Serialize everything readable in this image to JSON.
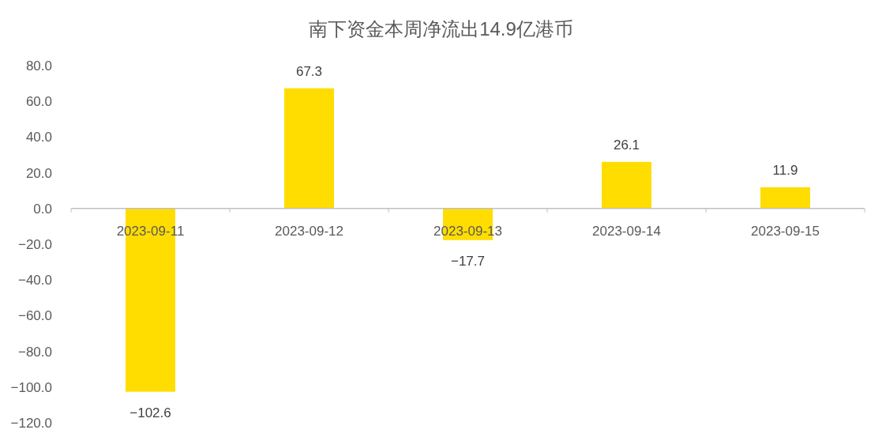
{
  "chart_data": {
    "type": "bar",
    "title": "南下资金本周净流出14.9亿港币",
    "categories": [
      "2023-09-11",
      "2023-09-12",
      "2023-09-13",
      "2023-09-14",
      "2023-09-15"
    ],
    "values": [
      -102.6,
      67.3,
      -17.7,
      26.1,
      11.9
    ],
    "value_labels": [
      "−102.6",
      "67.3",
      "−17.7",
      "26.1",
      "11.9"
    ],
    "color": "#ffdd00",
    "ylim": [
      -120,
      80
    ],
    "yticks": [
      {
        "value": -120,
        "label": "−120.0"
      },
      {
        "value": -100,
        "label": "−100.0"
      },
      {
        "value": -80,
        "label": "−80.0"
      },
      {
        "value": -60,
        "label": "−60.0"
      },
      {
        "value": -40,
        "label": "−40.0"
      },
      {
        "value": -20,
        "label": "−20.0"
      },
      {
        "value": 0,
        "label": "0.0"
      },
      {
        "value": 20,
        "label": "20.0"
      },
      {
        "value": 40,
        "label": "40.0"
      },
      {
        "value": 60,
        "label": "60.0"
      },
      {
        "value": 80,
        "label": "80.0"
      }
    ],
    "grid": false
  }
}
